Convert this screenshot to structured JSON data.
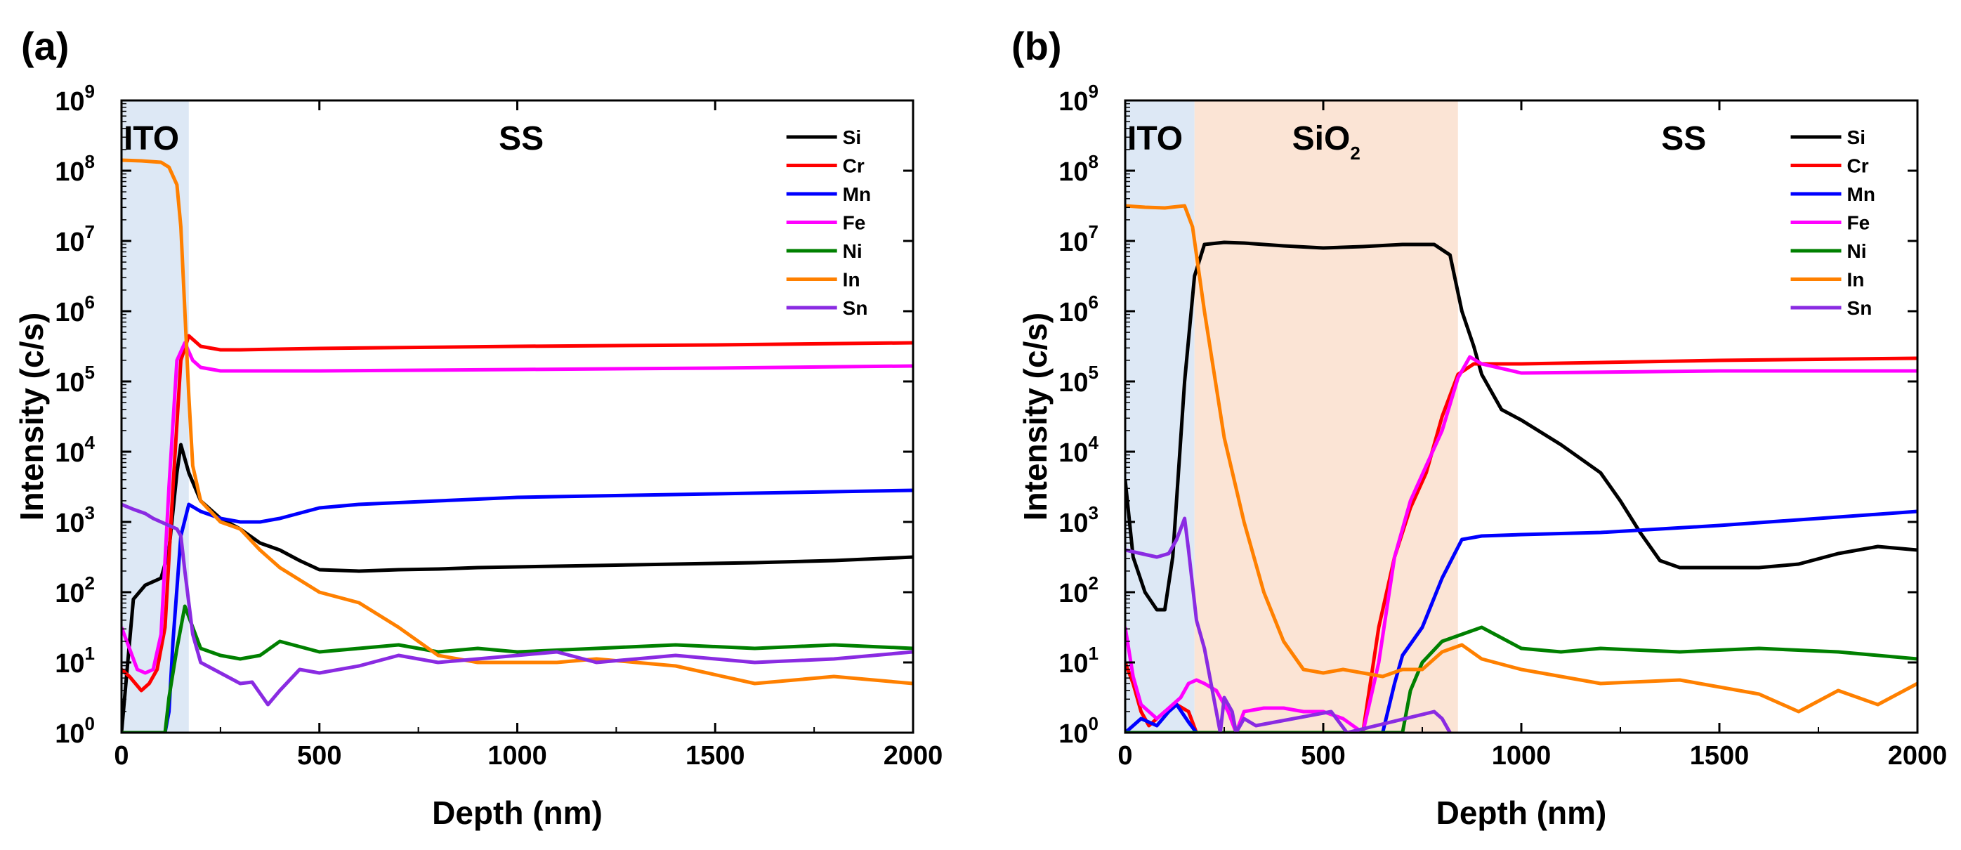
{
  "chart_data": [
    {
      "panel_label": "(a)",
      "type": "line",
      "xlabel": "Depth (nm)",
      "ylabel": "Intensity (c/s)",
      "y_scale": "log",
      "xlim": [
        0,
        2000
      ],
      "ylim_exponent": [
        0,
        9
      ],
      "x_ticks": [
        0,
        500,
        1000,
        1500,
        2000
      ],
      "y_tick_base": "10",
      "y_tick_exponents": [
        0,
        1,
        2,
        3,
        4,
        5,
        6,
        7,
        8,
        9
      ],
      "legend_position": "top-right",
      "regions": [
        {
          "label": "ITO",
          "x_start": 0,
          "x_end": 170,
          "color": "#dde8f5"
        },
        {
          "label": "SS",
          "x_start": 170,
          "x_end": 2000,
          "color": "none"
        }
      ],
      "series": [
        {
          "name": "Si",
          "color": "#000000",
          "x": [
            0,
            30,
            60,
            100,
            120,
            140,
            150,
            170,
            200,
            250,
            300,
            350,
            400,
            450,
            500,
            600,
            700,
            800,
            900,
            1000,
            1200,
            1400,
            1600,
            1800,
            2000
          ],
          "log10_y": [
            0,
            1.9,
            2.1,
            2.2,
            2.6,
            3.7,
            4.1,
            3.7,
            3.3,
            3.05,
            2.9,
            2.7,
            2.6,
            2.45,
            2.32,
            2.3,
            2.32,
            2.33,
            2.35,
            2.36,
            2.38,
            2.4,
            2.42,
            2.45,
            2.5
          ]
        },
        {
          "name": "Cr",
          "color": "#ff0000",
          "x": [
            0,
            20,
            50,
            70,
            90,
            110,
            130,
            150,
            170,
            200,
            250,
            300,
            500,
            1000,
            1500,
            2000
          ],
          "log10_y": [
            0.9,
            0.8,
            0.6,
            0.7,
            0.9,
            1.5,
            3.5,
            5.3,
            5.65,
            5.5,
            5.45,
            5.45,
            5.47,
            5.5,
            5.52,
            5.55
          ]
        },
        {
          "name": "Mn",
          "color": "#0000ff",
          "x": [
            0,
            110,
            120,
            130,
            150,
            170,
            200,
            250,
            300,
            350,
            400,
            500,
            600,
            800,
            1000,
            1500,
            2000
          ],
          "log10_y": [
            0,
            0,
            0.3,
            1.3,
            2.8,
            3.25,
            3.15,
            3.05,
            3.0,
            3.0,
            3.05,
            3.2,
            3.25,
            3.3,
            3.35,
            3.4,
            3.45
          ]
        },
        {
          "name": "Fe",
          "color": "#ff00ff",
          "x": [
            0,
            20,
            40,
            60,
            80,
            100,
            120,
            140,
            160,
            180,
            200,
            250,
            300,
            500,
            1000,
            1500,
            2000
          ],
          "log10_y": [
            1.5,
            1.2,
            0.9,
            0.85,
            0.9,
            1.4,
            3.5,
            5.3,
            5.55,
            5.3,
            5.2,
            5.15,
            5.15,
            5.15,
            5.17,
            5.19,
            5.22
          ]
        },
        {
          "name": "Ni",
          "color": "#008000",
          "x": [
            0,
            110,
            120,
            140,
            160,
            180,
            200,
            250,
            300,
            350,
            400,
            500,
            600,
            700,
            800,
            900,
            1000,
            1200,
            1400,
            1600,
            1800,
            2000
          ],
          "log10_y": [
            0,
            0,
            0.5,
            1.2,
            1.8,
            1.5,
            1.2,
            1.1,
            1.05,
            1.1,
            1.3,
            1.15,
            1.2,
            1.25,
            1.15,
            1.2,
            1.15,
            1.2,
            1.25,
            1.2,
            1.25,
            1.2
          ]
        },
        {
          "name": "In",
          "color": "#ff8000",
          "x": [
            0,
            50,
            100,
            120,
            140,
            150,
            160,
            170,
            180,
            200,
            250,
            300,
            350,
            400,
            500,
            600,
            700,
            800,
            900,
            1000,
            1100,
            1200,
            1400,
            1600,
            1800,
            2000
          ],
          "log10_y": [
            8.15,
            8.14,
            8.12,
            8.05,
            7.8,
            7.2,
            6.0,
            4.8,
            3.8,
            3.3,
            3.0,
            2.9,
            2.6,
            2.35,
            2.0,
            1.85,
            1.5,
            1.1,
            1.0,
            1.0,
            1.0,
            1.05,
            0.95,
            0.7,
            0.8,
            0.7
          ]
        },
        {
          "name": "Sn",
          "color": "#8a2be2",
          "x": [
            0,
            30,
            60,
            80,
            100,
            120,
            140,
            150,
            160,
            180,
            200,
            250,
            300,
            330,
            370,
            400,
            450,
            500,
            600,
            700,
            800,
            900,
            1000,
            1100,
            1200,
            1400,
            1600,
            1800,
            2000
          ],
          "log10_y": [
            3.25,
            3.18,
            3.12,
            3.05,
            3.0,
            2.95,
            2.9,
            2.8,
            2.3,
            1.4,
            1.0,
            0.85,
            0.7,
            0.72,
            0.4,
            0.6,
            0.9,
            0.85,
            0.95,
            1.1,
            1.0,
            1.05,
            1.1,
            1.15,
            1.0,
            1.1,
            1.0,
            1.05,
            1.15
          ]
        }
      ]
    },
    {
      "panel_label": "(b)",
      "type": "line",
      "xlabel": "Depth (nm)",
      "ylabel": "Intensity (c/s)",
      "y_scale": "log",
      "xlim": [
        0,
        2000
      ],
      "ylim_exponent": [
        0,
        9
      ],
      "x_ticks": [
        0,
        500,
        1000,
        1500,
        2000
      ],
      "y_tick_base": "10",
      "y_tick_exponents": [
        0,
        1,
        2,
        3,
        4,
        5,
        6,
        7,
        8,
        9
      ],
      "legend_position": "top-right",
      "regions": [
        {
          "label": "ITO",
          "x_start": 0,
          "x_end": 175,
          "color": "#dde8f5"
        },
        {
          "label": "SiO",
          "subscript": "2",
          "x_start": 175,
          "x_end": 840,
          "color": "#fbe4d5"
        },
        {
          "label": "SS",
          "x_start": 840,
          "x_end": 2000,
          "color": "none"
        }
      ],
      "series": [
        {
          "name": "Si",
          "color": "#000000",
          "x": [
            0,
            20,
            50,
            80,
            100,
            120,
            150,
            175,
            200,
            250,
            300,
            400,
            500,
            600,
            700,
            780,
            820,
            850,
            880,
            900,
            950,
            1000,
            1100,
            1200,
            1250,
            1300,
            1350,
            1400,
            1500,
            1600,
            1700,
            1800,
            1900,
            2000
          ],
          "log10_y": [
            3.6,
            2.5,
            2.0,
            1.75,
            1.75,
            2.5,
            5.0,
            6.5,
            6.95,
            6.98,
            6.97,
            6.93,
            6.9,
            6.92,
            6.95,
            6.95,
            6.8,
            6.0,
            5.5,
            5.1,
            4.6,
            4.45,
            4.1,
            3.7,
            3.3,
            2.85,
            2.45,
            2.35,
            2.35,
            2.35,
            2.4,
            2.55,
            2.65,
            2.6
          ]
        },
        {
          "name": "Cr",
          "color": "#ff0000",
          "x": [
            0,
            20,
            40,
            60,
            80,
            100,
            130,
            160,
            180,
            200,
            250,
            300,
            400,
            500,
            600,
            640,
            680,
            720,
            760,
            800,
            840,
            880,
            1000,
            1500,
            2000
          ],
          "log10_y": [
            1.0,
            0.7,
            0.3,
            0.1,
            0.2,
            0.3,
            0.4,
            0.3,
            0,
            0,
            0,
            0,
            0,
            0,
            0,
            1.5,
            2.5,
            3.2,
            3.7,
            4.5,
            5.1,
            5.25,
            5.25,
            5.3,
            5.33
          ]
        },
        {
          "name": "Mn",
          "color": "#0000ff",
          "x": [
            0,
            40,
            80,
            110,
            130,
            160,
            180,
            650,
            680,
            700,
            750,
            800,
            850,
            900,
            1000,
            1200,
            1500,
            2000
          ],
          "log10_y": [
            0,
            0.2,
            0.1,
            0.3,
            0.4,
            0.15,
            0,
            0,
            0.7,
            1.1,
            1.5,
            2.2,
            2.75,
            2.8,
            2.82,
            2.85,
            2.95,
            3.15
          ]
        },
        {
          "name": "Fe",
          "color": "#ff00ff",
          "x": [
            0,
            20,
            40,
            60,
            80,
            100,
            140,
            160,
            180,
            200,
            230,
            260,
            280,
            300,
            350,
            400,
            450,
            500,
            550,
            600,
            640,
            680,
            720,
            760,
            800,
            840,
            870,
            900,
            1000,
            1500,
            2000
          ],
          "log10_y": [
            1.5,
            0.8,
            0.4,
            0.3,
            0.2,
            0.3,
            0.5,
            0.7,
            0.75,
            0.7,
            0.6,
            0.3,
            0,
            0.3,
            0.35,
            0.35,
            0.3,
            0.3,
            0.2,
            0,
            1.0,
            2.5,
            3.3,
            3.8,
            4.3,
            5.05,
            5.35,
            5.25,
            5.12,
            5.15,
            5.15
          ]
        },
        {
          "name": "Ni",
          "color": "#008000",
          "x": [
            0,
            700,
            720,
            750,
            800,
            850,
            900,
            950,
            1000,
            1100,
            1200,
            1400,
            1600,
            1800,
            2000
          ],
          "log10_y": [
            0,
            0,
            0.6,
            1.0,
            1.3,
            1.4,
            1.5,
            1.35,
            1.2,
            1.15,
            1.2,
            1.15,
            1.2,
            1.15,
            1.05
          ]
        },
        {
          "name": "In",
          "color": "#ff8000",
          "x": [
            0,
            50,
            100,
            150,
            170,
            200,
            250,
            300,
            350,
            400,
            450,
            500,
            550,
            600,
            650,
            700,
            750,
            800,
            850,
            900,
            1000,
            1100,
            1200,
            1400,
            1600,
            1700,
            1800,
            1900,
            2000
          ],
          "log10_y": [
            7.5,
            7.48,
            7.47,
            7.5,
            7.2,
            6.0,
            4.2,
            3.0,
            2.0,
            1.3,
            0.9,
            0.85,
            0.9,
            0.85,
            0.8,
            0.9,
            0.9,
            1.15,
            1.25,
            1.05,
            0.9,
            0.8,
            0.7,
            0.75,
            0.55,
            0.3,
            0.6,
            0.4,
            0.7
          ]
        },
        {
          "name": "Sn",
          "color": "#8a2be2",
          "x": [
            0,
            40,
            80,
            110,
            130,
            150,
            160,
            180,
            200,
            220,
            240,
            250,
            270,
            280,
            300,
            330,
            520,
            560,
            780,
            800,
            820
          ],
          "log10_y": [
            2.6,
            2.55,
            2.5,
            2.55,
            2.75,
            3.05,
            2.6,
            1.6,
            1.2,
            0.6,
            0,
            0.5,
            0.3,
            0,
            0.2,
            0.1,
            0.3,
            0,
            0.3,
            0.2,
            0
          ]
        }
      ]
    }
  ]
}
